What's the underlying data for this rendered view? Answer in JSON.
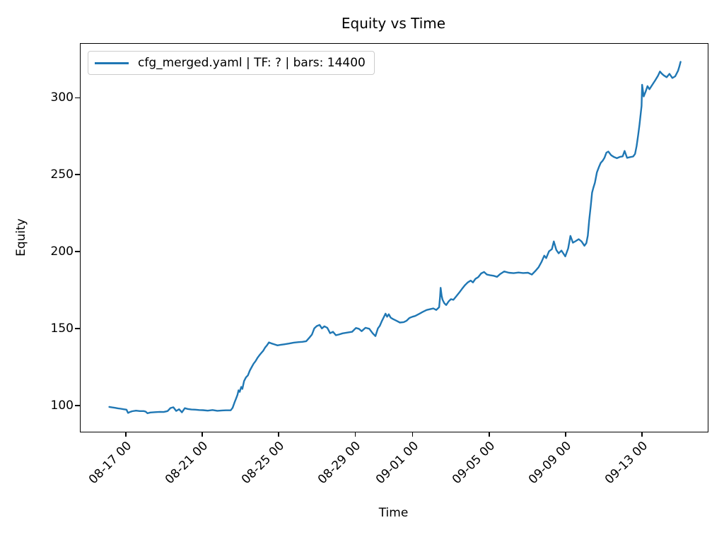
{
  "title": "Equity vs Time",
  "xlabel": "Time",
  "ylabel": "Equity",
  "legend": {
    "label": "cfg_merged.yaml | TF: ? | bars: 14400",
    "line_color": "#1f77b4"
  },
  "chart_data": {
    "type": "line",
    "title": "Equity vs Time",
    "xlabel": "Time",
    "ylabel": "Equity",
    "grid": false,
    "legend_position": "upper left",
    "x_unit": "days since 08-16 00:00",
    "xlim": [
      -1.4,
      31.4
    ],
    "ylim": [
      83.5,
      335.5
    ],
    "xticks": [
      {
        "t": 1,
        "label": "08-17 00"
      },
      {
        "t": 5,
        "label": "08-21 00"
      },
      {
        "t": 9,
        "label": "08-25 00"
      },
      {
        "t": 13,
        "label": "08-29 00"
      },
      {
        "t": 16,
        "label": "09-01 00"
      },
      {
        "t": 20,
        "label": "09-05 00"
      },
      {
        "t": 24,
        "label": "09-09 00"
      },
      {
        "t": 28,
        "label": "09-13 00"
      }
    ],
    "yticks": [
      {
        "v": 100,
        "label": "100"
      },
      {
        "v": 150,
        "label": "150"
      },
      {
        "v": 200,
        "label": "200"
      },
      {
        "v": 250,
        "label": "250"
      },
      {
        "v": 300,
        "label": "300"
      }
    ],
    "series": [
      {
        "name": "cfg_merged.yaml | TF: ? | bars: 14400",
        "color": "#1f77b4",
        "line_width": 2.4,
        "points": [
          [
            0.1,
            99.6
          ],
          [
            0.25,
            99.3
          ],
          [
            0.4,
            99.0
          ],
          [
            0.55,
            98.7
          ],
          [
            0.7,
            98.4
          ],
          [
            0.85,
            98.1
          ],
          [
            1.0,
            97.8
          ],
          [
            1.08,
            95.7
          ],
          [
            1.18,
            96.3
          ],
          [
            1.3,
            96.8
          ],
          [
            1.5,
            97.2
          ],
          [
            1.7,
            96.9
          ],
          [
            1.9,
            96.9
          ],
          [
            2.0,
            96.6
          ],
          [
            2.1,
            95.5
          ],
          [
            2.25,
            96.0
          ],
          [
            2.5,
            96.2
          ],
          [
            2.75,
            96.4
          ],
          [
            2.95,
            96.3
          ],
          [
            3.15,
            96.9
          ],
          [
            3.3,
            98.9
          ],
          [
            3.45,
            99.4
          ],
          [
            3.6,
            97.0
          ],
          [
            3.75,
            98.1
          ],
          [
            3.9,
            96.1
          ],
          [
            4.05,
            98.8
          ],
          [
            4.2,
            98.3
          ],
          [
            4.4,
            97.9
          ],
          [
            4.6,
            97.8
          ],
          [
            4.8,
            97.6
          ],
          [
            5.0,
            97.5
          ],
          [
            5.25,
            97.2
          ],
          [
            5.5,
            97.6
          ],
          [
            5.75,
            97.1
          ],
          [
            6.0,
            97.3
          ],
          [
            6.2,
            97.4
          ],
          [
            6.45,
            97.4
          ],
          [
            6.55,
            99.0
          ],
          [
            6.65,
            102.5
          ],
          [
            6.72,
            104.7
          ],
          [
            6.8,
            107.3
          ],
          [
            6.86,
            110.4
          ],
          [
            6.92,
            109.4
          ],
          [
            7.0,
            112.6
          ],
          [
            7.06,
            111.3
          ],
          [
            7.15,
            116.4
          ],
          [
            7.25,
            118.8
          ],
          [
            7.35,
            120.1
          ],
          [
            7.45,
            123.2
          ],
          [
            7.55,
            125.5
          ],
          [
            7.65,
            127.7
          ],
          [
            7.75,
            129.3
          ],
          [
            7.85,
            131.4
          ],
          [
            7.95,
            133.1
          ],
          [
            8.05,
            134.7
          ],
          [
            8.15,
            136.1
          ],
          [
            8.25,
            138.2
          ],
          [
            8.35,
            139.7
          ],
          [
            8.45,
            141.5
          ],
          [
            8.6,
            140.8
          ],
          [
            8.75,
            140.2
          ],
          [
            8.9,
            139.6
          ],
          [
            9.05,
            139.9
          ],
          [
            9.25,
            140.3
          ],
          [
            9.5,
            140.8
          ],
          [
            9.75,
            141.4
          ],
          [
            10.0,
            141.7
          ],
          [
            10.2,
            141.9
          ],
          [
            10.4,
            142.3
          ],
          [
            10.55,
            144.4
          ],
          [
            10.7,
            146.6
          ],
          [
            10.82,
            150.6
          ],
          [
            10.95,
            152.1
          ],
          [
            11.1,
            152.9
          ],
          [
            11.22,
            150.6
          ],
          [
            11.35,
            152.0
          ],
          [
            11.5,
            151.0
          ],
          [
            11.65,
            147.5
          ],
          [
            11.8,
            148.4
          ],
          [
            11.95,
            146.2
          ],
          [
            12.1,
            146.6
          ],
          [
            12.3,
            147.4
          ],
          [
            12.55,
            147.9
          ],
          [
            12.8,
            148.4
          ],
          [
            13.0,
            150.9
          ],
          [
            13.15,
            150.4
          ],
          [
            13.3,
            148.8
          ],
          [
            13.5,
            151.0
          ],
          [
            13.7,
            150.4
          ],
          [
            13.88,
            147.4
          ],
          [
            14.02,
            145.6
          ],
          [
            14.15,
            150.6
          ],
          [
            14.25,
            152.3
          ],
          [
            14.35,
            155.2
          ],
          [
            14.45,
            157.7
          ],
          [
            14.55,
            160.2
          ],
          [
            14.63,
            158.2
          ],
          [
            14.72,
            159.8
          ],
          [
            14.82,
            157.6
          ],
          [
            14.95,
            156.6
          ],
          [
            15.1,
            155.7
          ],
          [
            15.3,
            154.4
          ],
          [
            15.5,
            154.7
          ],
          [
            15.65,
            155.6
          ],
          [
            15.8,
            157.4
          ],
          [
            15.95,
            158.2
          ],
          [
            16.1,
            158.7
          ],
          [
            16.3,
            160.0
          ],
          [
            16.5,
            161.4
          ],
          [
            16.7,
            162.6
          ],
          [
            16.9,
            163.2
          ],
          [
            17.05,
            163.6
          ],
          [
            17.2,
            162.6
          ],
          [
            17.35,
            164.4
          ],
          [
            17.4,
            171.0
          ],
          [
            17.43,
            177.0
          ],
          [
            17.48,
            172.0
          ],
          [
            17.53,
            169.3
          ],
          [
            17.62,
            167.0
          ],
          [
            17.72,
            165.8
          ],
          [
            17.85,
            168.2
          ],
          [
            17.97,
            169.6
          ],
          [
            18.1,
            169.2
          ],
          [
            18.25,
            171.5
          ],
          [
            18.4,
            173.8
          ],
          [
            18.55,
            176.3
          ],
          [
            18.7,
            178.7
          ],
          [
            18.85,
            180.5
          ],
          [
            19.0,
            181.7
          ],
          [
            19.12,
            180.5
          ],
          [
            19.25,
            182.8
          ],
          [
            19.4,
            184.0
          ],
          [
            19.55,
            186.3
          ],
          [
            19.7,
            187.3
          ],
          [
            19.85,
            185.6
          ],
          [
            20.0,
            185.2
          ],
          [
            20.2,
            184.8
          ],
          [
            20.38,
            184.1
          ],
          [
            20.55,
            186.0
          ],
          [
            20.75,
            187.6
          ],
          [
            21.0,
            186.8
          ],
          [
            21.25,
            186.5
          ],
          [
            21.5,
            186.9
          ],
          [
            21.75,
            186.6
          ],
          [
            22.0,
            186.8
          ],
          [
            22.2,
            185.6
          ],
          [
            22.4,
            188.1
          ],
          [
            22.55,
            190.3
          ],
          [
            22.7,
            193.6
          ],
          [
            22.85,
            197.9
          ],
          [
            22.95,
            196.3
          ],
          [
            23.1,
            200.7
          ],
          [
            23.25,
            202.1
          ],
          [
            23.35,
            207.1
          ],
          [
            23.48,
            201.6
          ],
          [
            23.6,
            199.4
          ],
          [
            23.75,
            201.2
          ],
          [
            23.95,
            197.4
          ],
          [
            24.1,
            202.6
          ],
          [
            24.22,
            210.7
          ],
          [
            24.35,
            206.3
          ],
          [
            24.5,
            207.4
          ],
          [
            24.65,
            208.6
          ],
          [
            24.8,
            207.1
          ],
          [
            24.95,
            204.3
          ],
          [
            25.05,
            206.0
          ],
          [
            25.13,
            210.9
          ],
          [
            25.2,
            220.8
          ],
          [
            25.28,
            230.0
          ],
          [
            25.35,
            238.8
          ],
          [
            25.42,
            242.1
          ],
          [
            25.5,
            245.2
          ],
          [
            25.6,
            251.9
          ],
          [
            25.7,
            255.2
          ],
          [
            25.8,
            258.1
          ],
          [
            25.9,
            259.5
          ],
          [
            26.0,
            261.5
          ],
          [
            26.1,
            264.8
          ],
          [
            26.2,
            265.5
          ],
          [
            26.35,
            263.1
          ],
          [
            26.5,
            261.9
          ],
          [
            26.65,
            261.2
          ],
          [
            26.8,
            262.0
          ],
          [
            26.95,
            262.4
          ],
          [
            27.05,
            265.9
          ],
          [
            27.18,
            261.4
          ],
          [
            27.35,
            261.9
          ],
          [
            27.5,
            262.3
          ],
          [
            27.6,
            264.0
          ],
          [
            27.68,
            269.1
          ],
          [
            27.76,
            276.2
          ],
          [
            27.83,
            283.0
          ],
          [
            27.89,
            289.7
          ],
          [
            27.94,
            295.1
          ],
          [
            27.97,
            308.9
          ],
          [
            28.05,
            301.3
          ],
          [
            28.15,
            304.4
          ],
          [
            28.25,
            308.0
          ],
          [
            28.35,
            306.0
          ],
          [
            28.5,
            308.9
          ],
          [
            28.65,
            311.7
          ],
          [
            28.8,
            314.8
          ],
          [
            28.9,
            317.5
          ],
          [
            29.0,
            316.1
          ],
          [
            29.1,
            315.0
          ],
          [
            29.25,
            313.8
          ],
          [
            29.4,
            316.0
          ],
          [
            29.55,
            313.3
          ],
          [
            29.7,
            314.4
          ],
          [
            29.85,
            318.1
          ],
          [
            29.92,
            321.0
          ],
          [
            29.98,
            323.8
          ]
        ]
      }
    ]
  }
}
